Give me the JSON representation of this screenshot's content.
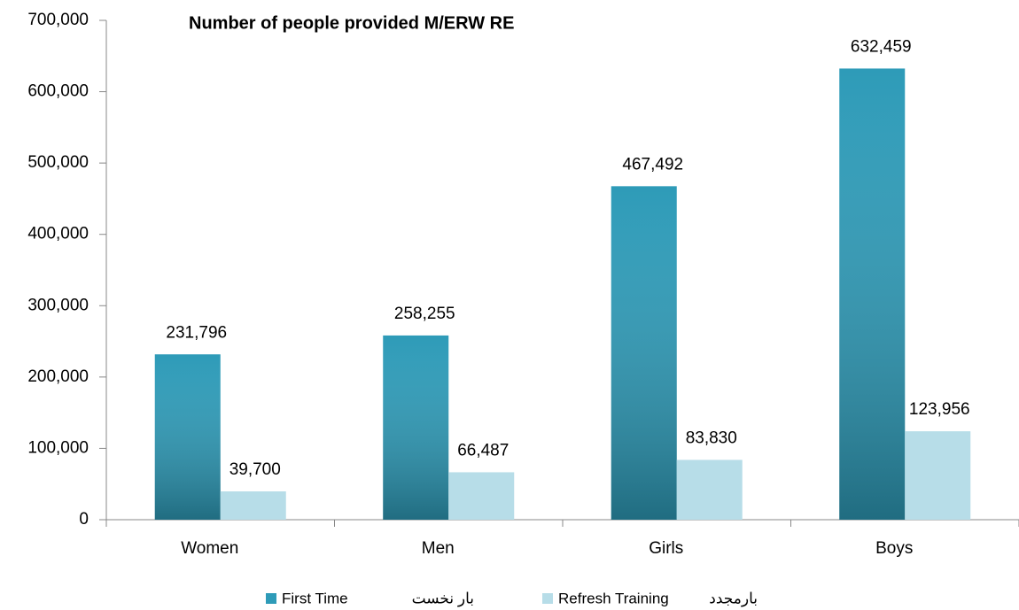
{
  "chart_data": {
    "type": "bar",
    "title": "Number of people provided M/ERW RE",
    "categories": [
      "Women",
      "Men",
      "Girls",
      "Boys"
    ],
    "series": [
      {
        "name": "First Time",
        "name_fa": "بار نخست",
        "color": "#2e9bb8",
        "values": [
          231796,
          258255,
          467492,
          632459
        ],
        "value_labels": [
          "231,796",
          "258,255",
          "467,492",
          "632,459"
        ]
      },
      {
        "name": "Refresh Training",
        "name_fa": "بارمجدد",
        "color": "#b7dde8",
        "values": [
          39700,
          66487,
          83830,
          123956
        ],
        "value_labels": [
          "39,700",
          "66,487",
          "83,830",
          "123,956"
        ]
      }
    ],
    "ylim": [
      0,
      700000
    ],
    "yticks": [
      0,
      {
        "value": 100000,
        "label": "100,000"
      },
      {
        "value": 200000,
        "label": "200,000"
      },
      {
        "value": 300000,
        "label": "300,000"
      },
      {
        "value": 400000,
        "label": "400,000"
      },
      {
        "value": 500000,
        "label": "500,000"
      },
      {
        "value": 600000,
        "label": "600,000"
      },
      {
        "value": 700000,
        "label": "700,000"
      }
    ],
    "grid": false,
    "legend": "bottom"
  }
}
